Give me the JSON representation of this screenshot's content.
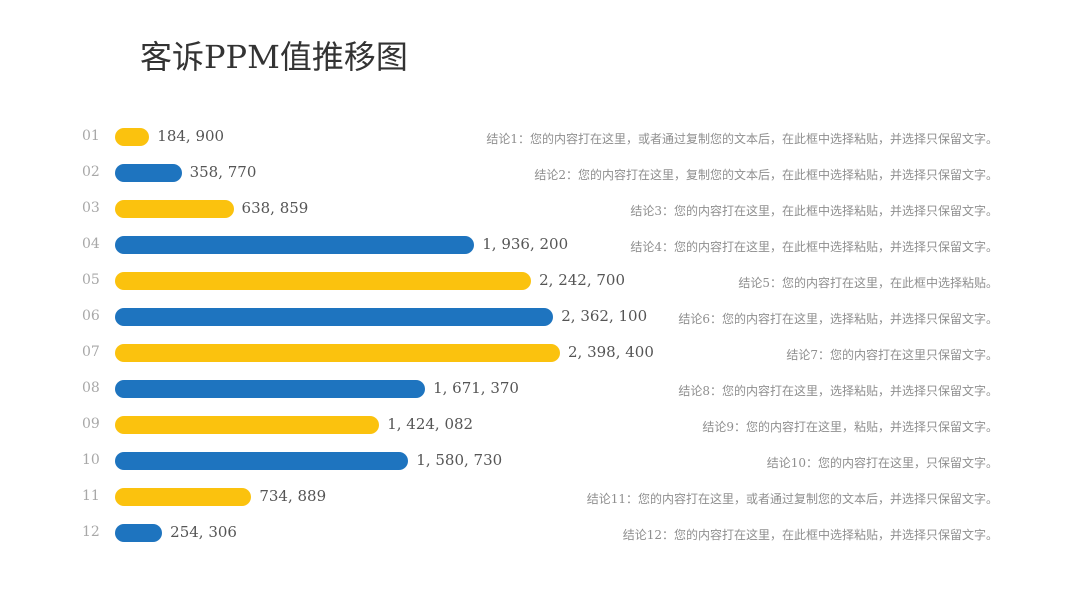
{
  "header": {
    "title": "客诉PPM值推移图"
  },
  "colors": {
    "blue": "#1e74bf",
    "yellow": "#fbc20e"
  },
  "chart_data": {
    "type": "bar",
    "orientation": "horizontal",
    "title": "客诉PPM值推移图",
    "categories": [
      "01",
      "02",
      "03",
      "04",
      "05",
      "06",
      "07",
      "08",
      "09",
      "10",
      "11",
      "12"
    ],
    "values": [
      184900,
      358770,
      638859,
      1936200,
      2242700,
      2362100,
      2398400,
      1671370,
      1424082,
      1580730,
      734889,
      254306
    ],
    "value_labels": [
      "184, 900",
      "358, 770",
      "638, 859",
      "1, 936, 200",
      "2, 242, 700",
      "2, 362, 100",
      "2, 398, 400",
      "1, 671, 370",
      "1, 424, 082",
      "1, 580, 730",
      "734, 889",
      "254, 306"
    ],
    "bar_colors": [
      "yellow",
      "blue",
      "yellow",
      "blue",
      "yellow",
      "blue",
      "yellow",
      "blue",
      "yellow",
      "blue",
      "yellow",
      "blue"
    ],
    "annotations": [
      "结论1：您的内容打在这里，或者通过复制您的文本后，在此框中选择粘贴，并选择只保留文字。",
      "结论2：您的内容打在这里，复制您的文本后，在此框中选择粘贴，并选择只保留文字。",
      "结论3：您的内容打在这里，在此框中选择粘贴，并选择只保留文字。",
      "结论4：您的内容打在这里，在此框中选择粘贴，并选择只保留文字。",
      "结论5：您的内容打在这里，在此框中选择粘贴。",
      "结论6：您的内容打在这里，选择粘贴，并选择只保留文字。",
      "结论7：您的内容打在这里只保留文字。",
      "结论8：您的内容打在这里，选择粘贴，并选择只保留文字。",
      "结论9：您的内容打在这里，粘贴，并选择只保留文字。",
      "结论10：您的内容打在这里，只保留文字。",
      "结论11：您的内容打在这里，或者通过复制您的文本后，并选择只保留文字。",
      "结论12：您的内容打在这里，在此框中选择粘贴，并选择只保留文字。"
    ],
    "xlim": [
      0,
      2398400
    ],
    "grid": false,
    "legend": "none"
  }
}
